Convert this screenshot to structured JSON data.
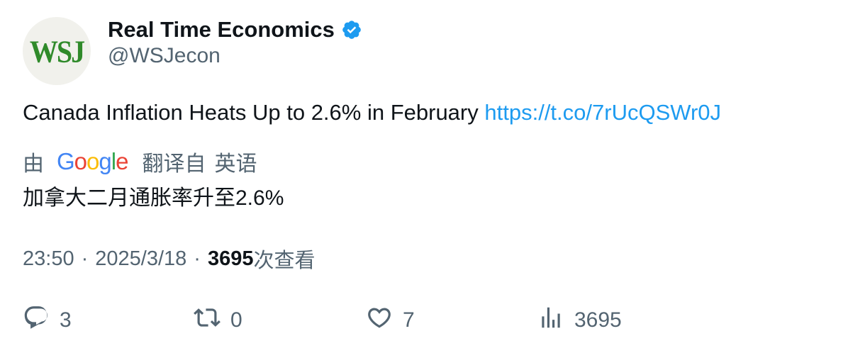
{
  "author": {
    "avatar_text": "WSJ",
    "display_name": "Real Time Economics",
    "handle": "@WSJecon",
    "verified": true
  },
  "tweet": {
    "text": "Canada Inflation Heats Up to 2.6% in February",
    "link": "https://t.co/7rUcQSWr0J"
  },
  "translation": {
    "by_label": "由",
    "provider_letters": [
      "G",
      "o",
      "o",
      "g",
      "l",
      "e"
    ],
    "provider_colors": [
      "#4285F4",
      "#EA4335",
      "#FBBC05",
      "#4285F4",
      "#34A853",
      "#EA4335"
    ],
    "translated_from_label": "翻译自",
    "source_language": "英语",
    "text": "加拿大二月通胀率升至2.6%"
  },
  "meta": {
    "time": "23:50",
    "separator": "·",
    "date": "2025/3/18",
    "views_count": "3695",
    "views_label": "次查看"
  },
  "actions": {
    "reply_count": "3",
    "retweet_count": "0",
    "like_count": "7",
    "views_count": "3695"
  },
  "colors": {
    "link": "#1d9bf0",
    "secondary_text": "#536471",
    "verified_badge": "#1d9bf0",
    "avatar_bg": "#f1f1ec",
    "avatar_text": "#2f8a2a"
  },
  "icons": {
    "verified": "verified-badge-icon",
    "reply": "reply-icon",
    "retweet": "retweet-icon",
    "like": "heart-icon",
    "views": "analytics-icon"
  }
}
